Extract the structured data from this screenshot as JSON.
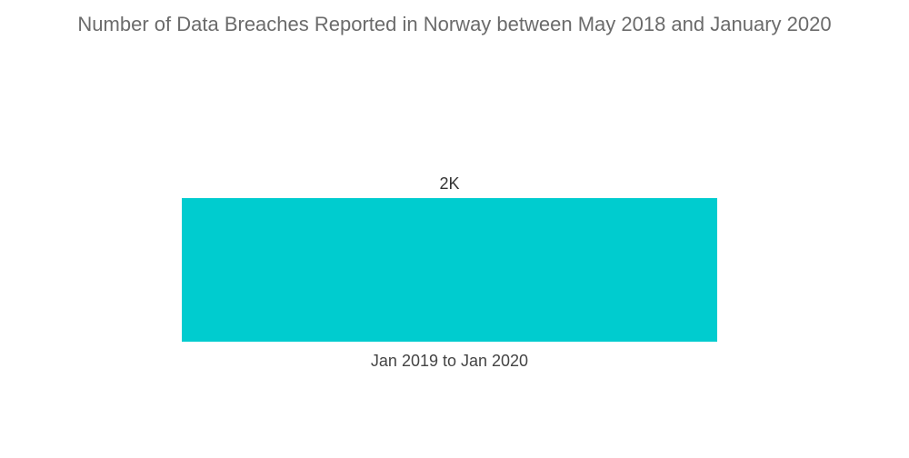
{
  "chart_data": {
    "type": "bar",
    "title": "Number of Data Breaches Reported in Norway between May 2018 and January 2020",
    "categories": [
      "Jan 2019 to Jan 2020"
    ],
    "values": [
      2000
    ],
    "data_labels": [
      "2K"
    ],
    "xlabel": "",
    "ylabel": "",
    "ylim": [
      0,
      2000
    ],
    "grid": false,
    "legend": "none",
    "bar_color": "#00cccf"
  }
}
